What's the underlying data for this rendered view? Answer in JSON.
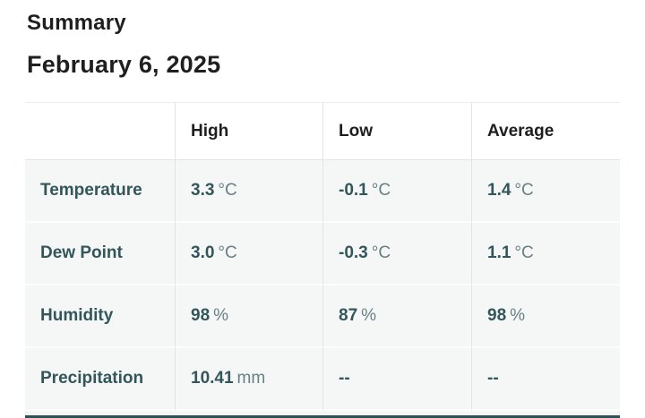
{
  "page": {
    "title": "Summary",
    "date": "February 6, 2025"
  },
  "table": {
    "columns": {
      "label": "",
      "high": "High",
      "low": "Low",
      "average": "Average"
    },
    "rows": [
      {
        "label": "Temperature",
        "cells": [
          {
            "v": "3.3",
            "u": "°C"
          },
          {
            "v": "-0.1",
            "u": "°C"
          },
          {
            "v": "1.4",
            "u": "°C"
          }
        ]
      },
      {
        "label": "Dew Point",
        "cells": [
          {
            "v": "3.0",
            "u": "°C"
          },
          {
            "v": "-0.3",
            "u": "°C"
          },
          {
            "v": "1.1",
            "u": "°C"
          }
        ]
      },
      {
        "label": "Humidity",
        "cells": [
          {
            "v": "98",
            "u": "%"
          },
          {
            "v": "87",
            "u": "%"
          },
          {
            "v": "98",
            "u": "%"
          }
        ]
      },
      {
        "label": "Precipitation",
        "cells": [
          {
            "v": "10.41",
            "u": "mm"
          },
          {
            "v": "--",
            "u": ""
          },
          {
            "v": "--",
            "u": ""
          }
        ]
      }
    ]
  },
  "colors": {
    "heading_text": "#1f1f1f",
    "value_teal": "#33565b",
    "unit_gray": "#688084",
    "row_background": "#f5f6f6",
    "border_gray": "#e3e4e5",
    "bottom_bar_teal": "#2f5156"
  },
  "chart_data": {
    "type": "table",
    "title": "Summary",
    "subtitle": "February 6, 2025",
    "columns": [
      "",
      "High",
      "Low",
      "Average"
    ],
    "rows": [
      [
        "Temperature",
        "3.3 °C",
        "-0.1 °C",
        "1.4 °C"
      ],
      [
        "Dew Point",
        "3.0 °C",
        "-0.3 °C",
        "1.1 °C"
      ],
      [
        "Humidity",
        "98 %",
        "87 %",
        "98 %"
      ],
      [
        "Precipitation",
        "10.41 mm",
        "--",
        "--"
      ]
    ]
  }
}
